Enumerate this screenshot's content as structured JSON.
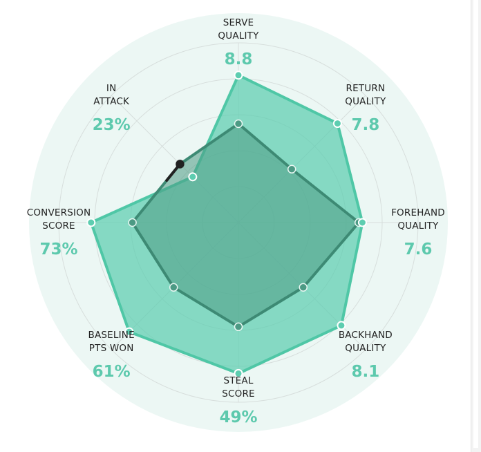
{
  "chart_data": {
    "type": "radar",
    "axes": [
      {
        "label_lines": [
          "SERVE",
          "QUALITY"
        ],
        "value_text": "8.8"
      },
      {
        "label_lines": [
          "RETURN",
          "QUALITY"
        ],
        "value_text": "7.8"
      },
      {
        "label_lines": [
          "FOREHAND",
          "QUALITY"
        ],
        "value_text": "7.6"
      },
      {
        "label_lines": [
          "BACKHAND",
          "QUALITY"
        ],
        "value_text": "8.1"
      },
      {
        "label_lines": [
          "STEAL",
          "SCORE"
        ],
        "value_text": "49%"
      },
      {
        "label_lines": [
          "BASELINE",
          "PTS WON"
        ],
        "value_text": "61%"
      },
      {
        "label_lines": [
          "CONVERSION",
          "SCORE"
        ],
        "value_text": "73%"
      },
      {
        "label_lines": [
          "IN",
          "ATTACK"
        ],
        "value_text": "23%"
      }
    ],
    "scale": [
      0,
      1
    ],
    "grid_rings": 5,
    "series": [
      {
        "role": "highlighted",
        "values": [
          0.82,
          0.78,
          0.69,
          0.81,
          0.84,
          0.86,
          0.82,
          0.36
        ]
      },
      {
        "role": "comparison",
        "values": [
          0.55,
          0.42,
          0.67,
          0.51,
          0.58,
          0.51,
          0.59,
          0.46
        ]
      }
    ],
    "grid": true,
    "legend": "none"
  },
  "colors": {
    "background_disc": "#ecf7f4",
    "grid_line": "#d7dedc",
    "highlight_fill": "#5dcdb0",
    "highlight_stroke": "#4fc7a6",
    "comparison_fill": "#4c9a84",
    "comparison_stroke": "#3d8a74",
    "dark_marker": "#222222",
    "value_text": "#5dc9ad",
    "label_text": "#222222"
  }
}
